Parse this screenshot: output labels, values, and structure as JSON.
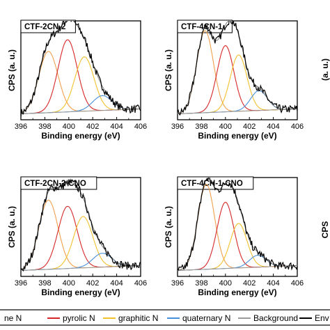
{
  "chart_data": [
    {
      "type": "line",
      "panel_label": "CTF-2CN-2",
      "xlabel": "Binding energy (eV)",
      "ylabel": "CPS (a. u.)",
      "xlim": [
        396,
        406
      ],
      "xticks": [
        396,
        398,
        400,
        402,
        404,
        406
      ],
      "peaks": [
        {
          "name": "pyridine N",
          "center": 398.3,
          "height": 0.62,
          "sigma": 0.8
        },
        {
          "name": "pyrolic N",
          "center": 399.9,
          "height": 0.73,
          "sigma": 0.8
        },
        {
          "name": "graphitic N",
          "center": 401.3,
          "height": 0.55,
          "sigma": 0.8
        },
        {
          "name": "quaternary N",
          "center": 402.8,
          "height": 0.15,
          "sigma": 0.8
        }
      ]
    },
    {
      "type": "line",
      "panel_label": "CTF-4CN-1",
      "xlabel": "Binding energy (eV)",
      "ylabel": "CPS (a. u.)",
      "xlim": [
        396,
        406
      ],
      "xticks": [
        396,
        398,
        400,
        402,
        404,
        406
      ],
      "peaks": [
        {
          "name": "pyridine N",
          "center": 398.3,
          "height": 0.83,
          "sigma": 0.7
        },
        {
          "name": "pyrolic N",
          "center": 400.0,
          "height": 0.67,
          "sigma": 0.7
        },
        {
          "name": "graphitic N",
          "center": 401.1,
          "height": 0.57,
          "sigma": 0.7
        },
        {
          "name": "quaternary N",
          "center": 402.8,
          "height": 0.2,
          "sigma": 0.7
        }
      ]
    },
    {
      "type": "line",
      "panel_label": "CTF-2CN-2-CNO",
      "xlabel": "Binding energy (eV)",
      "ylabel": "CPS (a. u.)",
      "xlim": [
        396,
        406
      ],
      "xticks": [
        396,
        398,
        400,
        402,
        404,
        406
      ],
      "peaks": [
        {
          "name": "pyridine N",
          "center": 398.3,
          "height": 0.7,
          "sigma": 0.8
        },
        {
          "name": "pyrolic N",
          "center": 399.9,
          "height": 0.63,
          "sigma": 0.8
        },
        {
          "name": "graphitic N",
          "center": 401.2,
          "height": 0.52,
          "sigma": 0.8
        },
        {
          "name": "quaternary N",
          "center": 402.8,
          "height": 0.14,
          "sigma": 0.8
        }
      ]
    },
    {
      "type": "line",
      "panel_label": "CTF-4CN-1-CNO",
      "xlabel": "Binding energy (eV)",
      "ylabel": "CPS (a. u.)",
      "xlim": [
        396,
        406
      ],
      "xticks": [
        396,
        398,
        400,
        402,
        404,
        406
      ],
      "peaks": [
        {
          "name": "pyridine N",
          "center": 398.4,
          "height": 0.86,
          "sigma": 0.7
        },
        {
          "name": "pyrolic N",
          "center": 400.0,
          "height": 0.67,
          "sigma": 0.7
        },
        {
          "name": "graphitic N",
          "center": 401.1,
          "height": 0.45,
          "sigma": 0.7
        },
        {
          "name": "quaternary N",
          "center": 402.7,
          "height": 0.12,
          "sigma": 0.7
        }
      ]
    }
  ],
  "legend": {
    "items": [
      {
        "label": "ne N",
        "color": "#f0a04b"
      },
      {
        "label": "pyrolic N",
        "color": "#d62728"
      },
      {
        "label": "graphitic N",
        "color": "#f2c12e"
      },
      {
        "label": "quaternary N",
        "color": "#4a90d9"
      },
      {
        "label": "Background",
        "color": "#9a9a9a"
      },
      {
        "label": "Env",
        "color": "#000000"
      }
    ]
  },
  "partial_right_panels": {
    "top_ylabel_fragment": "(a. u.)",
    "bottom_ylabel_fragment": "CPS"
  },
  "colors": {
    "pyridine": "#f0a04b",
    "pyrolic": "#d62728",
    "graphitic": "#f2c12e",
    "quaternary": "#4a90d9",
    "background": "#9a9a9a",
    "raw": "#000000"
  }
}
